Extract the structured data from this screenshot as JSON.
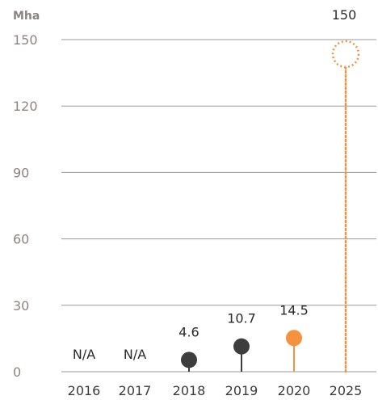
{
  "chart_data": {
    "type": "lollipop",
    "unit": "Mha",
    "ylim": [
      0,
      150
    ],
    "yticks": [
      "0",
      "30",
      "60",
      "90",
      "120",
      "150"
    ],
    "grid": true,
    "categories": [
      "2016",
      "2017",
      "2018",
      "2019",
      "2020",
      "2025"
    ],
    "values": [
      null,
      null,
      4.6,
      10.7,
      14.5,
      150
    ],
    "data_labels": [
      "N/A",
      "N/A",
      "4.6",
      "10.7",
      "14.5",
      "150"
    ],
    "point_styles": [
      "none",
      "none",
      "filled",
      "filled",
      "filled",
      "dotted-target"
    ],
    "colors": {
      "historical": "#3d3d3d",
      "current": "#f5923e",
      "target": "#f5923e",
      "grid": "#9a9a9a",
      "axis_text": "#8c8480"
    }
  }
}
